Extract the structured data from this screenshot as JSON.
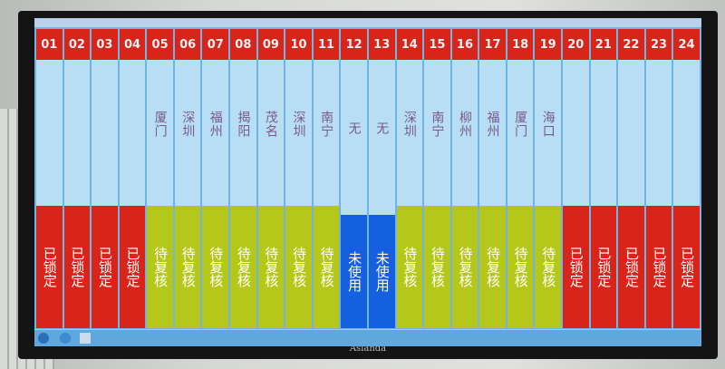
{
  "brand": "Asianda",
  "colors": {
    "locked": "#d9241a",
    "pending": "#b5c81a",
    "unused": "#1560e0",
    "header": "#d9241a"
  },
  "columns": [
    {
      "num": "01",
      "city": "",
      "status": "已锁定",
      "state": "locked"
    },
    {
      "num": "02",
      "city": "",
      "status": "已锁定",
      "state": "locked"
    },
    {
      "num": "03",
      "city": "",
      "status": "已锁定",
      "state": "locked"
    },
    {
      "num": "04",
      "city": "",
      "status": "已锁定",
      "state": "locked"
    },
    {
      "num": "05",
      "city": "厦门",
      "status": "待复核",
      "state": "pending"
    },
    {
      "num": "06",
      "city": "深圳",
      "status": "待复核",
      "state": "pending"
    },
    {
      "num": "07",
      "city": "福州",
      "status": "待复核",
      "state": "pending"
    },
    {
      "num": "08",
      "city": "揭阳",
      "status": "待复核",
      "state": "pending"
    },
    {
      "num": "09",
      "city": "茂名",
      "status": "待复核",
      "state": "pending"
    },
    {
      "num": "10",
      "city": "深圳",
      "status": "待复核",
      "state": "pending"
    },
    {
      "num": "11",
      "city": "南宁",
      "status": "待复核",
      "state": "pending"
    },
    {
      "num": "12",
      "city": "无",
      "status": "未使用",
      "state": "unused"
    },
    {
      "num": "13",
      "city": "无",
      "status": "未使用",
      "state": "unused"
    },
    {
      "num": "14",
      "city": "深圳",
      "status": "待复核",
      "state": "pending"
    },
    {
      "num": "15",
      "city": "南宁",
      "status": "待复核",
      "state": "pending"
    },
    {
      "num": "16",
      "city": "柳州",
      "status": "待复核",
      "state": "pending"
    },
    {
      "num": "17",
      "city": "福州",
      "status": "待复核",
      "state": "pending"
    },
    {
      "num": "18",
      "city": "厦门",
      "status": "待复核",
      "state": "pending"
    },
    {
      "num": "19",
      "city": "海口",
      "status": "待复核",
      "state": "pending"
    },
    {
      "num": "20",
      "city": "",
      "status": "已锁定",
      "state": "locked"
    },
    {
      "num": "21",
      "city": "",
      "status": "已锁定",
      "state": "locked"
    },
    {
      "num": "22",
      "city": "",
      "status": "已锁定",
      "state": "locked"
    },
    {
      "num": "23",
      "city": "",
      "status": "已锁定",
      "state": "locked"
    },
    {
      "num": "24",
      "city": "",
      "status": "已锁定",
      "state": "locked"
    }
  ]
}
